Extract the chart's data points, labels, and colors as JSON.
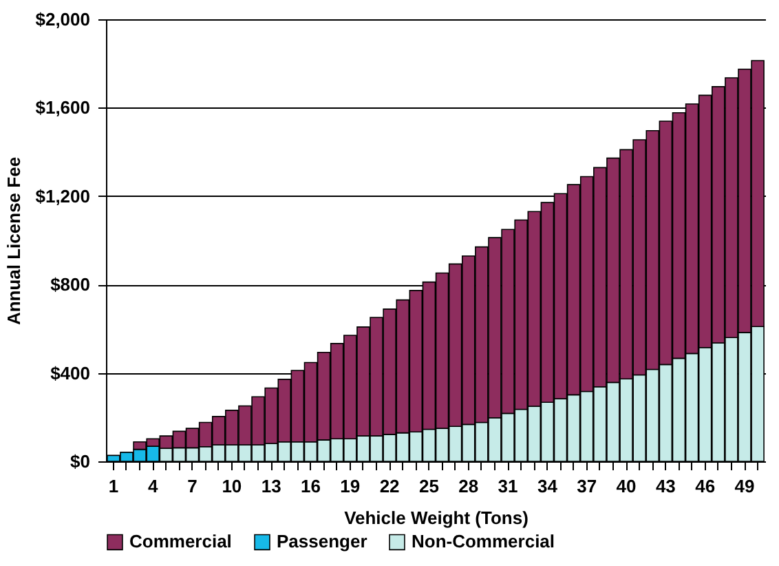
{
  "chart_data": {
    "type": "bar",
    "stacked": true,
    "xlabel": "Vehicle Weight (Tons)",
    "ylabel": "Annual License Fee",
    "categories": [
      "1",
      null,
      null,
      "4",
      null,
      null,
      "7",
      null,
      null,
      "10",
      null,
      null,
      "13",
      null,
      null,
      "16",
      null,
      null,
      "19",
      null,
      null,
      "22",
      null,
      null,
      "25",
      null,
      null,
      "28",
      null,
      null,
      "31",
      null,
      null,
      "34",
      null,
      null,
      "37",
      null,
      null,
      "40",
      null,
      null,
      "43",
      null,
      null,
      "46",
      null,
      null,
      "49",
      null
    ],
    "ylim": [
      0,
      2000
    ],
    "yticks": [
      {
        "value": 0,
        "label": "$0"
      },
      {
        "value": 400,
        "label": "$400"
      },
      {
        "value": 800,
        "label": "$800"
      },
      {
        "value": 1200,
        "label": "$1,200"
      },
      {
        "value": 1600,
        "label": "$1,600"
      },
      {
        "value": 2000,
        "label": "$2,000"
      }
    ],
    "grid": "y",
    "legend": "bottom",
    "series": [
      {
        "name": "Passenger",
        "color": "#17b9e8",
        "values": [
          27,
          41,
          54,
          68,
          null,
          null,
          null,
          null,
          null,
          null,
          null,
          null,
          null,
          null,
          null,
          null,
          null,
          null,
          null,
          null,
          null,
          null,
          null,
          null,
          null,
          null,
          null,
          null,
          null,
          null,
          null,
          null,
          null,
          null,
          null,
          null,
          null,
          null,
          null,
          null,
          null,
          null,
          null,
          null,
          null,
          null,
          null,
          null,
          null,
          null
        ]
      },
      {
        "name": "Non-Commercial",
        "color": "#c6ebe8",
        "values": [
          null,
          null,
          null,
          null,
          59,
          61,
          61,
          66,
          75,
          75,
          75,
          75,
          81,
          88,
          88,
          88,
          97,
          102,
          102,
          115,
          115,
          122,
          129,
          133,
          145,
          149,
          158,
          167,
          176,
          197,
          217,
          235,
          249,
          267,
          283,
          301,
          316,
          337,
          357,
          373,
          391,
          416,
          438,
          466,
          488,
          515,
          536,
          560,
          583,
          610
        ]
      },
      {
        "name": "Commercial",
        "color": "#8e2d5e",
        "values": [
          null,
          null,
          34,
          34,
          56,
          75,
          88,
          110,
          128,
          156,
          176,
          217,
          251,
          283,
          323,
          359,
          396,
          431,
          468,
          493,
          536,
          567,
          601,
          640,
          666,
          703,
          735,
          762,
          794,
          815,
          832,
          857,
          881,
          904,
          928,
          951,
          972,
          992,
          1015,
          1037,
          1064,
          1080,
          1101,
          1111,
          1129,
          1141,
          1159,
          1175,
          1191,
          1203
        ]
      }
    ]
  }
}
